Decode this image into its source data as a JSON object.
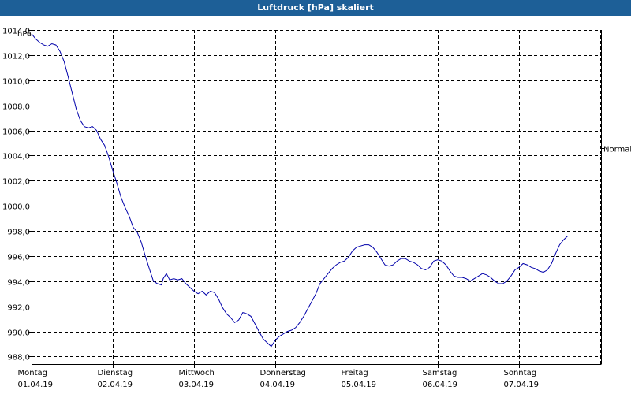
{
  "header": {
    "title": "Luftdruck [hPa] skaliert"
  },
  "chart_data": {
    "type": "line",
    "title": "Luftdruck [hPa] skaliert",
    "ylabel": "hPa",
    "xlabel": "",
    "ylim": [
      987.4,
      1014.0
    ],
    "xlim": [
      0,
      7
    ],
    "grid": true,
    "y_ticks": [
      "1014,0",
      "1012,0",
      "1010,0",
      "1008,0",
      "1006,0",
      "1004,0",
      "1002,0",
      "1000,0",
      "998,0",
      "996,0",
      "994,0",
      "992,0",
      "990,0",
      "988,0"
    ],
    "y_tick_values": [
      1014,
      1012,
      1010,
      1008,
      1006,
      1004,
      1002,
      1000,
      998,
      996,
      994,
      992,
      990,
      988
    ],
    "x_ticks": [
      {
        "day": "Montag",
        "date": "01.04.19",
        "x": 0
      },
      {
        "day": "Dienstag",
        "date": "02.04.19",
        "x": 1
      },
      {
        "day": "Mittwoch",
        "date": "03.04.19",
        "x": 2
      },
      {
        "day": "Donnerstag",
        "date": "04.04.19",
        "x": 3
      },
      {
        "day": "Freitag",
        "date": "05.04.19",
        "x": 4
      },
      {
        "day": "Samstag",
        "date": "06.04.19",
        "x": 5
      },
      {
        "day": "Sonntag",
        "date": "07.04.19",
        "x": 6
      }
    ],
    "reference_line": {
      "label": "Normal",
      "value": 1004.6
    },
    "series": [
      {
        "color": "#0000aa",
        "points": [
          [
            0.0,
            1013.7
          ],
          [
            0.05,
            1013.3
          ],
          [
            0.1,
            1013.0
          ],
          [
            0.15,
            1012.8
          ],
          [
            0.2,
            1012.7
          ],
          [
            0.25,
            1012.9
          ],
          [
            0.3,
            1012.8
          ],
          [
            0.35,
            1012.3
          ],
          [
            0.4,
            1011.5
          ],
          [
            0.45,
            1010.3
          ],
          [
            0.5,
            1009.0
          ],
          [
            0.55,
            1007.7
          ],
          [
            0.6,
            1006.8
          ],
          [
            0.65,
            1006.3
          ],
          [
            0.7,
            1006.2
          ],
          [
            0.75,
            1006.3
          ],
          [
            0.8,
            1006.0
          ],
          [
            0.85,
            1005.3
          ],
          [
            0.9,
            1004.8
          ],
          [
            0.95,
            1003.9
          ],
          [
            1.0,
            1002.8
          ],
          [
            1.05,
            1001.8
          ],
          [
            1.1,
            1000.7
          ],
          [
            1.15,
            999.9
          ],
          [
            1.2,
            999.2
          ],
          [
            1.25,
            998.3
          ],
          [
            1.3,
            997.9
          ],
          [
            1.35,
            997.1
          ],
          [
            1.4,
            996.0
          ],
          [
            1.45,
            995.0
          ],
          [
            1.5,
            994.0
          ],
          [
            1.55,
            993.8
          ],
          [
            1.6,
            993.7
          ],
          [
            1.62,
            994.2
          ],
          [
            1.66,
            994.6
          ],
          [
            1.7,
            994.1
          ],
          [
            1.75,
            994.2
          ],
          [
            1.8,
            994.1
          ],
          [
            1.85,
            994.2
          ],
          [
            1.9,
            993.8
          ],
          [
            1.95,
            993.5
          ],
          [
            2.0,
            993.2
          ],
          [
            2.05,
            993.0
          ],
          [
            2.1,
            993.2
          ],
          [
            2.15,
            992.9
          ],
          [
            2.2,
            993.2
          ],
          [
            2.25,
            993.1
          ],
          [
            2.3,
            992.6
          ],
          [
            2.35,
            991.9
          ],
          [
            2.4,
            991.4
          ],
          [
            2.45,
            991.1
          ],
          [
            2.5,
            990.7
          ],
          [
            2.55,
            990.9
          ],
          [
            2.6,
            991.5
          ],
          [
            2.65,
            991.4
          ],
          [
            2.7,
            991.2
          ],
          [
            2.75,
            990.6
          ],
          [
            2.8,
            990.0
          ],
          [
            2.85,
            989.4
          ],
          [
            2.9,
            989.1
          ],
          [
            2.95,
            988.8
          ],
          [
            3.0,
            989.3
          ],
          [
            3.05,
            989.6
          ],
          [
            3.1,
            989.8
          ],
          [
            3.15,
            990.0
          ],
          [
            3.2,
            990.1
          ],
          [
            3.25,
            990.3
          ],
          [
            3.3,
            990.7
          ],
          [
            3.35,
            991.2
          ],
          [
            3.4,
            991.8
          ],
          [
            3.45,
            992.4
          ],
          [
            3.5,
            993.0
          ],
          [
            3.55,
            993.8
          ],
          [
            3.6,
            994.2
          ],
          [
            3.65,
            994.6
          ],
          [
            3.7,
            995.0
          ],
          [
            3.75,
            995.3
          ],
          [
            3.8,
            995.5
          ],
          [
            3.85,
            995.6
          ],
          [
            3.9,
            995.9
          ],
          [
            3.95,
            996.4
          ],
          [
            4.0,
            996.7
          ],
          [
            4.05,
            996.8
          ],
          [
            4.1,
            996.9
          ],
          [
            4.15,
            996.9
          ],
          [
            4.2,
            996.7
          ],
          [
            4.25,
            996.3
          ],
          [
            4.3,
            995.8
          ],
          [
            4.35,
            995.3
          ],
          [
            4.4,
            995.2
          ],
          [
            4.45,
            995.3
          ],
          [
            4.5,
            995.6
          ],
          [
            4.55,
            995.8
          ],
          [
            4.6,
            995.8
          ],
          [
            4.65,
            995.6
          ],
          [
            4.7,
            995.5
          ],
          [
            4.75,
            995.3
          ],
          [
            4.8,
            995.0
          ],
          [
            4.85,
            994.9
          ],
          [
            4.9,
            995.1
          ],
          [
            4.95,
            995.6
          ],
          [
            5.0,
            995.7
          ],
          [
            5.05,
            995.6
          ],
          [
            5.1,
            995.3
          ],
          [
            5.15,
            994.8
          ],
          [
            5.2,
            994.4
          ],
          [
            5.25,
            994.3
          ],
          [
            5.3,
            994.3
          ],
          [
            5.35,
            994.2
          ],
          [
            5.4,
            994.0
          ],
          [
            5.45,
            994.2
          ],
          [
            5.5,
            994.4
          ],
          [
            5.55,
            994.6
          ],
          [
            5.6,
            994.5
          ],
          [
            5.65,
            994.3
          ],
          [
            5.7,
            994.0
          ],
          [
            5.75,
            993.8
          ],
          [
            5.8,
            993.8
          ],
          [
            5.85,
            994.0
          ],
          [
            5.9,
            994.4
          ],
          [
            5.95,
            994.9
          ],
          [
            6.0,
            995.1
          ],
          [
            6.05,
            995.4
          ],
          [
            6.1,
            995.3
          ],
          [
            6.15,
            995.1
          ],
          [
            6.2,
            995.0
          ],
          [
            6.25,
            994.8
          ],
          [
            6.3,
            994.7
          ],
          [
            6.35,
            994.9
          ],
          [
            6.4,
            995.4
          ],
          [
            6.45,
            996.2
          ],
          [
            6.5,
            996.9
          ],
          [
            6.55,
            997.3
          ],
          [
            6.6,
            997.6
          ]
        ]
      }
    ]
  }
}
